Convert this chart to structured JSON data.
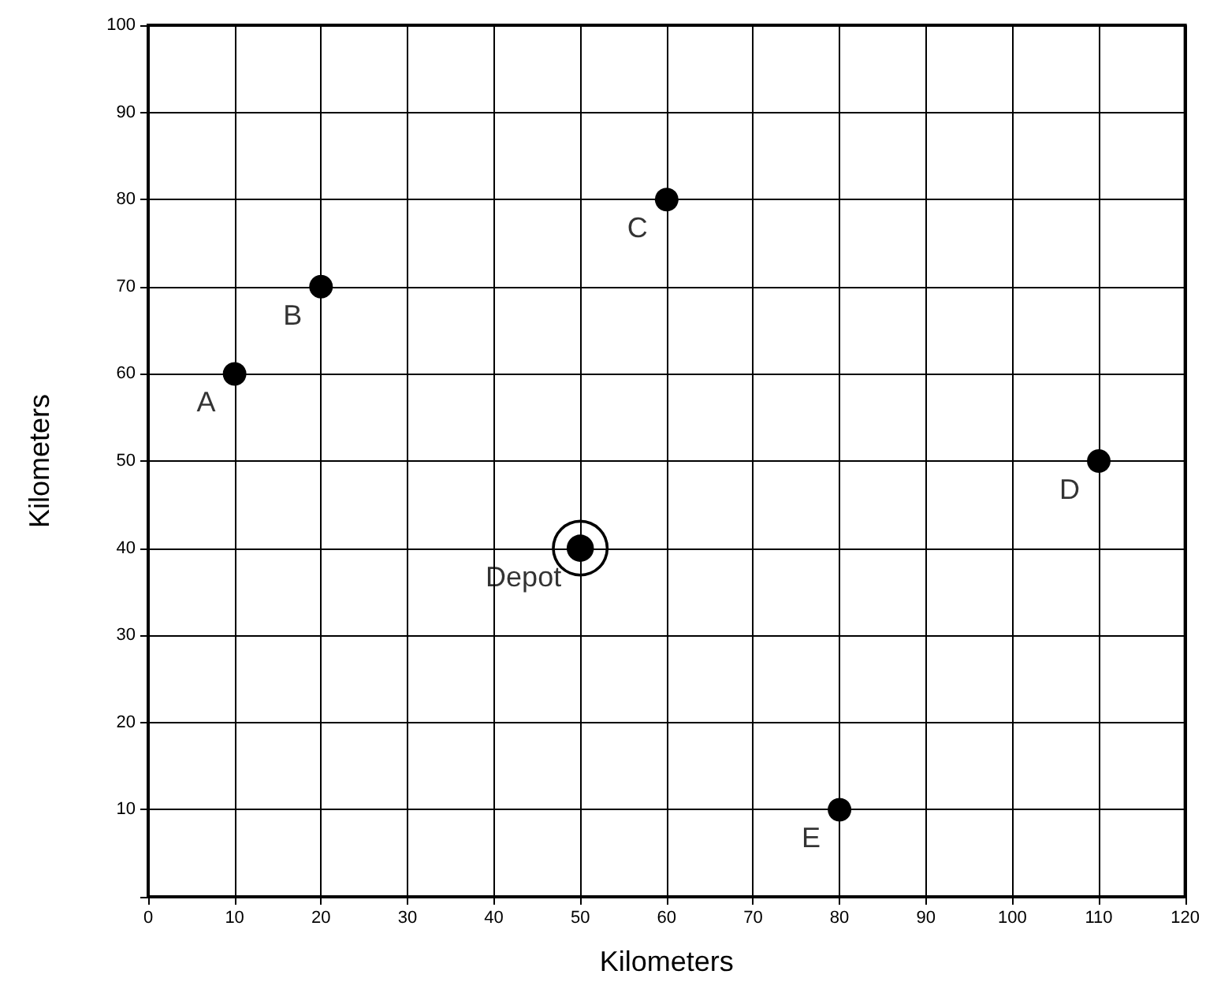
{
  "chart_data": {
    "type": "scatter",
    "xlabel": "Kilometers",
    "ylabel": "Kilometers",
    "xlim": [
      0,
      120
    ],
    "ylim": [
      0,
      100
    ],
    "xticks": [
      0,
      10,
      20,
      30,
      40,
      50,
      60,
      70,
      80,
      90,
      100,
      110,
      120
    ],
    "yticks": [
      {
        "value": 0,
        "label": null
      },
      10,
      20,
      30,
      40,
      50,
      60,
      70,
      80,
      90,
      100
    ],
    "grid": true,
    "marker": "circle",
    "series": [
      {
        "color": "#000000",
        "x": [
          10,
          20,
          60,
          110,
          80
        ],
        "values": [
          60,
          70,
          80,
          50,
          10
        ]
      },
      {
        "color": "#000000",
        "x": [
          50
        ],
        "values": [
          40
        ],
        "marker": "circle"
      }
    ],
    "annotations": [
      {
        "text": "A",
        "x": 10,
        "y": 60
      },
      {
        "text": "B",
        "x": 20,
        "y": 70
      },
      {
        "text": "C",
        "x": 60,
        "y": 80
      },
      {
        "text": "D",
        "x": 110,
        "y": 50
      },
      {
        "text": "E",
        "x": 80,
        "y": 10
      },
      {
        "text": "Depot",
        "x": 50,
        "y": 40
      }
    ]
  }
}
